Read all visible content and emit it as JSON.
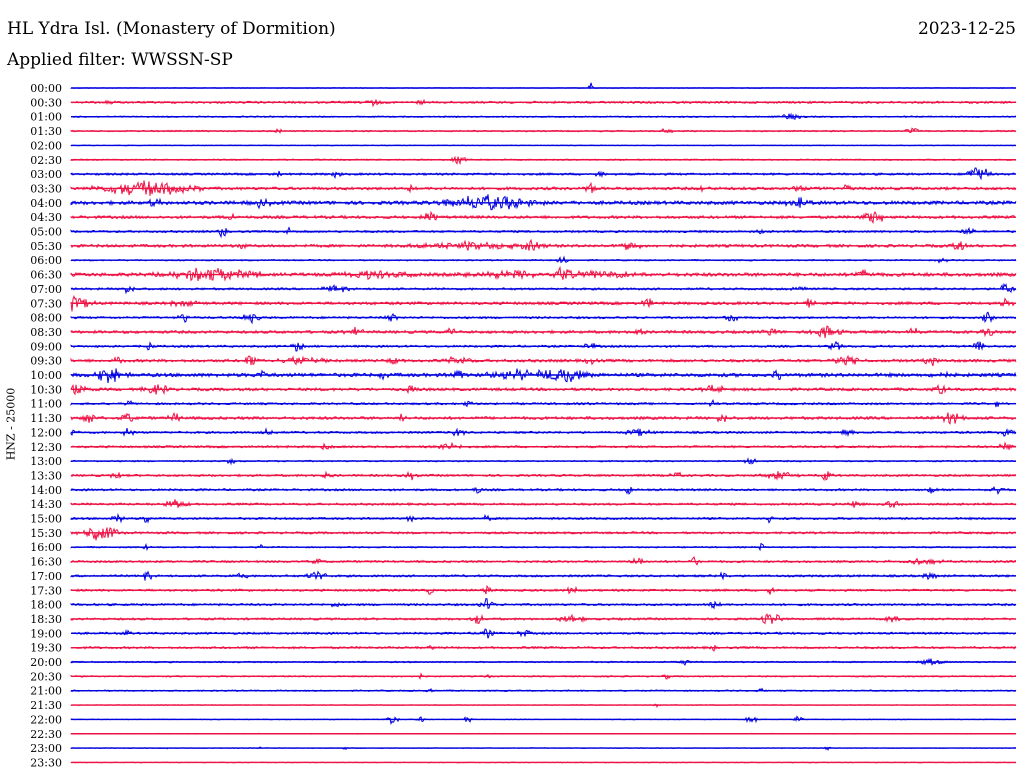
{
  "header": {
    "station_title": "HL Ydra Isl. (Monastery of Dormition)",
    "date": "2023-12-25",
    "filter_label": "Applied filter: WWSSN-SP"
  },
  "chart_data": {
    "type": "line",
    "ylabel": "HNZ - 25000",
    "trace_colors": [
      "#0000e0",
      "#ee1144"
    ],
    "rows": [
      "00:00",
      "00:30",
      "01:00",
      "01:30",
      "02:00",
      "02:30",
      "03:00",
      "03:30",
      "04:00",
      "04:30",
      "05:00",
      "05:30",
      "06:00",
      "06:30",
      "07:00",
      "07:30",
      "08:00",
      "08:30",
      "09:00",
      "09:30",
      "10:00",
      "10:30",
      "11:00",
      "11:30",
      "12:00",
      "12:30",
      "13:00",
      "13:30",
      "14:00",
      "14:30",
      "15:00",
      "15:30",
      "16:00",
      "16:30",
      "17:00",
      "17:30",
      "18:00",
      "18:30",
      "19:00",
      "19:30",
      "20:00",
      "20:30",
      "21:00",
      "21:30",
      "22:00",
      "22:30",
      "23:00",
      "23:30"
    ],
    "noise_level": [
      1,
      3,
      2,
      2,
      1,
      2,
      3,
      4,
      5,
      4,
      3,
      4,
      2,
      5,
      3,
      4,
      3,
      4,
      3,
      4,
      5,
      4,
      3,
      4,
      3,
      3,
      2,
      3,
      3,
      3,
      3,
      3,
      2,
      3,
      3,
      3,
      3,
      3,
      3,
      3,
      2,
      2,
      2,
      1,
      1,
      1,
      1,
      1
    ],
    "events": [
      {
        "row": "00:00",
        "x": 0.55,
        "w": 0.004,
        "amp": 6
      },
      {
        "row": "00:30",
        "x": 0.04,
        "w": 0.01,
        "amp": 3
      },
      {
        "row": "00:30",
        "x": 0.32,
        "w": 0.01,
        "amp": 3
      },
      {
        "row": "00:30",
        "x": 0.37,
        "w": 0.008,
        "amp": 3
      },
      {
        "row": "01:00",
        "x": 0.76,
        "w": 0.02,
        "amp": 3
      },
      {
        "row": "01:30",
        "x": 0.22,
        "w": 0.008,
        "amp": 3
      },
      {
        "row": "01:30",
        "x": 0.63,
        "w": 0.008,
        "amp": 3
      },
      {
        "row": "01:30",
        "x": 0.89,
        "w": 0.01,
        "amp": 4
      },
      {
        "row": "02:30",
        "x": 0.41,
        "w": 0.012,
        "amp": 4
      },
      {
        "row": "03:00",
        "x": 0.22,
        "w": 0.008,
        "amp": 4
      },
      {
        "row": "03:00",
        "x": 0.28,
        "w": 0.008,
        "amp": 4
      },
      {
        "row": "03:00",
        "x": 0.56,
        "w": 0.008,
        "amp": 3
      },
      {
        "row": "03:00",
        "x": 0.96,
        "w": 0.015,
        "amp": 10
      },
      {
        "row": "03:30",
        "x": 0.08,
        "w": 0.07,
        "amp": 8
      },
      {
        "row": "03:30",
        "x": 0.36,
        "w": 0.006,
        "amp": 4
      },
      {
        "row": "03:30",
        "x": 0.55,
        "w": 0.01,
        "amp": 6
      },
      {
        "row": "03:30",
        "x": 0.67,
        "w": 0.008,
        "amp": 4
      },
      {
        "row": "03:30",
        "x": 0.77,
        "w": 0.008,
        "amp": 4
      },
      {
        "row": "03:30",
        "x": 0.82,
        "w": 0.008,
        "amp": 4
      },
      {
        "row": "04:00",
        "x": 0.09,
        "w": 0.01,
        "amp": 5
      },
      {
        "row": "04:00",
        "x": 0.2,
        "w": 0.015,
        "amp": 4
      },
      {
        "row": "04:00",
        "x": 0.44,
        "w": 0.07,
        "amp": 8
      },
      {
        "row": "04:00",
        "x": 0.77,
        "w": 0.02,
        "amp": 8
      },
      {
        "row": "04:30",
        "x": 0.17,
        "w": 0.008,
        "amp": 4
      },
      {
        "row": "04:30",
        "x": 0.38,
        "w": 0.012,
        "amp": 6
      },
      {
        "row": "04:30",
        "x": 0.85,
        "w": 0.02,
        "amp": 7
      },
      {
        "row": "05:00",
        "x": 0.16,
        "w": 0.008,
        "amp": 6
      },
      {
        "row": "05:00",
        "x": 0.23,
        "w": 0.006,
        "amp": 4
      },
      {
        "row": "05:00",
        "x": 0.73,
        "w": 0.006,
        "amp": 3
      },
      {
        "row": "05:00",
        "x": 0.95,
        "w": 0.01,
        "amp": 5
      },
      {
        "row": "05:30",
        "x": 0.18,
        "w": 0.006,
        "amp": 4
      },
      {
        "row": "05:30",
        "x": 0.42,
        "w": 0.08,
        "amp": 4
      },
      {
        "row": "05:30",
        "x": 0.49,
        "w": 0.02,
        "amp": 6
      },
      {
        "row": "05:30",
        "x": 0.59,
        "w": 0.015,
        "amp": 6
      },
      {
        "row": "05:30",
        "x": 0.94,
        "w": 0.01,
        "amp": 6
      },
      {
        "row": "06:00",
        "x": 0.52,
        "w": 0.01,
        "amp": 4
      },
      {
        "row": "06:00",
        "x": 0.92,
        "w": 0.01,
        "amp": 3
      },
      {
        "row": "06:30",
        "x": 0.15,
        "w": 0.07,
        "amp": 7
      },
      {
        "row": "06:30",
        "x": 0.32,
        "w": 0.05,
        "amp": 4
      },
      {
        "row": "06:30",
        "x": 0.46,
        "w": 0.06,
        "amp": 4
      },
      {
        "row": "06:30",
        "x": 0.52,
        "w": 0.02,
        "amp": 7
      },
      {
        "row": "06:30",
        "x": 0.56,
        "w": 0.05,
        "amp": 4
      },
      {
        "row": "06:30",
        "x": 0.84,
        "w": 0.02,
        "amp": 4
      },
      {
        "row": "07:00",
        "x": 0.06,
        "w": 0.01,
        "amp": 4
      },
      {
        "row": "07:00",
        "x": 0.28,
        "w": 0.02,
        "amp": 4
      },
      {
        "row": "07:00",
        "x": 0.77,
        "w": 0.01,
        "amp": 5
      },
      {
        "row": "07:00",
        "x": 0.99,
        "w": 0.01,
        "amp": 7
      },
      {
        "row": "07:30",
        "x": 0.0,
        "w": 0.03,
        "amp": 8
      },
      {
        "row": "07:30",
        "x": 0.12,
        "w": 0.02,
        "amp": 4
      },
      {
        "row": "07:30",
        "x": 0.61,
        "w": 0.01,
        "amp": 5
      },
      {
        "row": "07:30",
        "x": 0.78,
        "w": 0.01,
        "amp": 5
      },
      {
        "row": "07:30",
        "x": 0.99,
        "w": 0.01,
        "amp": 5
      },
      {
        "row": "08:00",
        "x": 0.12,
        "w": 0.01,
        "amp": 5
      },
      {
        "row": "08:00",
        "x": 0.19,
        "w": 0.015,
        "amp": 5
      },
      {
        "row": "08:00",
        "x": 0.34,
        "w": 0.01,
        "amp": 4
      },
      {
        "row": "08:00",
        "x": 0.7,
        "w": 0.01,
        "amp": 5
      },
      {
        "row": "08:00",
        "x": 0.97,
        "w": 0.01,
        "amp": 5
      },
      {
        "row": "08:30",
        "x": 0.3,
        "w": 0.015,
        "amp": 4
      },
      {
        "row": "08:30",
        "x": 0.4,
        "w": 0.01,
        "amp": 4
      },
      {
        "row": "08:30",
        "x": 0.6,
        "w": 0.01,
        "amp": 4
      },
      {
        "row": "08:30",
        "x": 0.74,
        "w": 0.01,
        "amp": 5
      },
      {
        "row": "08:30",
        "x": 0.8,
        "w": 0.02,
        "amp": 6
      },
      {
        "row": "08:30",
        "x": 0.89,
        "w": 0.01,
        "amp": 5
      },
      {
        "row": "08:30",
        "x": 0.97,
        "w": 0.01,
        "amp": 5
      },
      {
        "row": "09:00",
        "x": 0.08,
        "w": 0.01,
        "amp": 5
      },
      {
        "row": "09:00",
        "x": 0.24,
        "w": 0.01,
        "amp": 5
      },
      {
        "row": "09:00",
        "x": 0.55,
        "w": 0.01,
        "amp": 4
      },
      {
        "row": "09:00",
        "x": 0.81,
        "w": 0.01,
        "amp": 5
      },
      {
        "row": "09:00",
        "x": 0.96,
        "w": 0.01,
        "amp": 5
      },
      {
        "row": "09:30",
        "x": 0.05,
        "w": 0.01,
        "amp": 4
      },
      {
        "row": "09:30",
        "x": 0.19,
        "w": 0.01,
        "amp": 7
      },
      {
        "row": "09:30",
        "x": 0.24,
        "w": 0.04,
        "amp": 4
      },
      {
        "row": "09:30",
        "x": 0.34,
        "w": 0.01,
        "amp": 5
      },
      {
        "row": "09:30",
        "x": 0.41,
        "w": 0.02,
        "amp": 4
      },
      {
        "row": "09:30",
        "x": 0.55,
        "w": 0.01,
        "amp": 4
      },
      {
        "row": "09:30",
        "x": 0.82,
        "w": 0.02,
        "amp": 5
      },
      {
        "row": "09:30",
        "x": 0.91,
        "w": 0.01,
        "amp": 5
      },
      {
        "row": "10:00",
        "x": 0.04,
        "w": 0.025,
        "amp": 8
      },
      {
        "row": "10:00",
        "x": 0.2,
        "w": 0.01,
        "amp": 5
      },
      {
        "row": "10:00",
        "x": 0.33,
        "w": 0.01,
        "amp": 4
      },
      {
        "row": "10:00",
        "x": 0.41,
        "w": 0.01,
        "amp": 6
      },
      {
        "row": "10:00",
        "x": 0.47,
        "w": 0.04,
        "amp": 6
      },
      {
        "row": "10:00",
        "x": 0.52,
        "w": 0.04,
        "amp": 8
      },
      {
        "row": "10:00",
        "x": 0.75,
        "w": 0.01,
        "amp": 6
      },
      {
        "row": "10:00",
        "x": 0.92,
        "w": 0.01,
        "amp": 6
      },
      {
        "row": "10:30",
        "x": 0.0,
        "w": 0.025,
        "amp": 6
      },
      {
        "row": "10:30",
        "x": 0.09,
        "w": 0.02,
        "amp": 5
      },
      {
        "row": "10:30",
        "x": 0.36,
        "w": 0.01,
        "amp": 5
      },
      {
        "row": "10:30",
        "x": 0.68,
        "w": 0.015,
        "amp": 5
      },
      {
        "row": "10:30",
        "x": 0.92,
        "w": 0.01,
        "amp": 5
      },
      {
        "row": "11:00",
        "x": 0.06,
        "w": 0.006,
        "amp": 4
      },
      {
        "row": "11:00",
        "x": 0.42,
        "w": 0.006,
        "amp": 4
      },
      {
        "row": "11:00",
        "x": 0.55,
        "w": 0.006,
        "amp": 4
      },
      {
        "row": "11:00",
        "x": 0.68,
        "w": 0.006,
        "amp": 4
      },
      {
        "row": "11:00",
        "x": 0.98,
        "w": 0.006,
        "amp": 4
      },
      {
        "row": "11:30",
        "x": 0.02,
        "w": 0.01,
        "amp": 6
      },
      {
        "row": "11:30",
        "x": 0.06,
        "w": 0.01,
        "amp": 5
      },
      {
        "row": "11:30",
        "x": 0.11,
        "w": 0.01,
        "amp": 5
      },
      {
        "row": "11:30",
        "x": 0.35,
        "w": 0.006,
        "amp": 4
      },
      {
        "row": "11:30",
        "x": 0.69,
        "w": 0.01,
        "amp": 5
      },
      {
        "row": "11:30",
        "x": 0.93,
        "w": 0.02,
        "amp": 6
      },
      {
        "row": "12:00",
        "x": 0.0,
        "w": 0.01,
        "amp": 5
      },
      {
        "row": "12:00",
        "x": 0.06,
        "w": 0.01,
        "amp": 5
      },
      {
        "row": "12:00",
        "x": 0.21,
        "w": 0.01,
        "amp": 4
      },
      {
        "row": "12:00",
        "x": 0.41,
        "w": 0.01,
        "amp": 5
      },
      {
        "row": "12:00",
        "x": 0.6,
        "w": 0.02,
        "amp": 4
      },
      {
        "row": "12:00",
        "x": 0.82,
        "w": 0.01,
        "amp": 4
      },
      {
        "row": "12:00",
        "x": 0.99,
        "w": 0.01,
        "amp": 6
      },
      {
        "row": "12:30",
        "x": 0.27,
        "w": 0.01,
        "amp": 3
      },
      {
        "row": "12:30",
        "x": 0.4,
        "w": 0.02,
        "amp": 3
      },
      {
        "row": "12:30",
        "x": 0.99,
        "w": 0.01,
        "amp": 5
      },
      {
        "row": "13:00",
        "x": 0.17,
        "w": 0.006,
        "amp": 4
      },
      {
        "row": "13:00",
        "x": 0.72,
        "w": 0.01,
        "amp": 5
      },
      {
        "row": "13:30",
        "x": 0.05,
        "w": 0.01,
        "amp": 5
      },
      {
        "row": "13:30",
        "x": 0.27,
        "w": 0.01,
        "amp": 3
      },
      {
        "row": "13:30",
        "x": 0.36,
        "w": 0.01,
        "amp": 4
      },
      {
        "row": "13:30",
        "x": 0.64,
        "w": 0.01,
        "amp": 4
      },
      {
        "row": "13:30",
        "x": 0.75,
        "w": 0.03,
        "amp": 4
      },
      {
        "row": "13:30",
        "x": 0.8,
        "w": 0.01,
        "amp": 6
      },
      {
        "row": "14:00",
        "x": 0.43,
        "w": 0.006,
        "amp": 5
      },
      {
        "row": "14:00",
        "x": 0.59,
        "w": 0.006,
        "amp": 5
      },
      {
        "row": "14:00",
        "x": 0.91,
        "w": 0.01,
        "amp": 4
      },
      {
        "row": "14:00",
        "x": 0.98,
        "w": 0.01,
        "amp": 4
      },
      {
        "row": "14:30",
        "x": 0.11,
        "w": 0.02,
        "amp": 5
      },
      {
        "row": "14:30",
        "x": 0.83,
        "w": 0.01,
        "amp": 5
      },
      {
        "row": "14:30",
        "x": 0.87,
        "w": 0.01,
        "amp": 5
      },
      {
        "row": "15:00",
        "x": 0.05,
        "w": 0.01,
        "amp": 5
      },
      {
        "row": "15:00",
        "x": 0.08,
        "w": 0.006,
        "amp": 6
      },
      {
        "row": "15:00",
        "x": 0.36,
        "w": 0.006,
        "amp": 4
      },
      {
        "row": "15:00",
        "x": 0.44,
        "w": 0.006,
        "amp": 4
      },
      {
        "row": "15:00",
        "x": 0.74,
        "w": 0.006,
        "amp": 5
      },
      {
        "row": "15:30",
        "x": 0.03,
        "w": 0.03,
        "amp": 8
      },
      {
        "row": "15:30",
        "x": 0.32,
        "w": 0.006,
        "amp": 3
      },
      {
        "row": "16:00",
        "x": 0.08,
        "w": 0.005,
        "amp": 3
      },
      {
        "row": "16:00",
        "x": 0.2,
        "w": 0.005,
        "amp": 3
      },
      {
        "row": "16:00",
        "x": 0.73,
        "w": 0.005,
        "amp": 6
      },
      {
        "row": "16:30",
        "x": 0.26,
        "w": 0.01,
        "amp": 3
      },
      {
        "row": "16:30",
        "x": 0.6,
        "w": 0.01,
        "amp": 5
      },
      {
        "row": "16:30",
        "x": 0.66,
        "w": 0.01,
        "amp": 5
      },
      {
        "row": "16:30",
        "x": 0.9,
        "w": 0.04,
        "amp": 3
      },
      {
        "row": "17:00",
        "x": 0.08,
        "w": 0.01,
        "amp": 5
      },
      {
        "row": "17:00",
        "x": 0.18,
        "w": 0.01,
        "amp": 4
      },
      {
        "row": "17:00",
        "x": 0.26,
        "w": 0.015,
        "amp": 5
      },
      {
        "row": "17:00",
        "x": 0.69,
        "w": 0.01,
        "amp": 4
      },
      {
        "row": "17:00",
        "x": 0.91,
        "w": 0.01,
        "amp": 5
      },
      {
        "row": "17:30",
        "x": 0.38,
        "w": 0.006,
        "amp": 4
      },
      {
        "row": "17:30",
        "x": 0.44,
        "w": 0.006,
        "amp": 6
      },
      {
        "row": "17:30",
        "x": 0.53,
        "w": 0.01,
        "amp": 4
      },
      {
        "row": "17:30",
        "x": 0.74,
        "w": 0.006,
        "amp": 5
      },
      {
        "row": "18:00",
        "x": 0.28,
        "w": 0.006,
        "amp": 4
      },
      {
        "row": "18:00",
        "x": 0.44,
        "w": 0.01,
        "amp": 7
      },
      {
        "row": "18:00",
        "x": 0.68,
        "w": 0.01,
        "amp": 4
      },
      {
        "row": "18:30",
        "x": 0.43,
        "w": 0.01,
        "amp": 6
      },
      {
        "row": "18:30",
        "x": 0.53,
        "w": 0.02,
        "amp": 4
      },
      {
        "row": "18:30",
        "x": 0.74,
        "w": 0.02,
        "amp": 6
      },
      {
        "row": "18:30",
        "x": 0.87,
        "w": 0.01,
        "amp": 4
      },
      {
        "row": "19:00",
        "x": 0.06,
        "w": 0.006,
        "amp": 5
      },
      {
        "row": "19:00",
        "x": 0.44,
        "w": 0.01,
        "amp": 5
      },
      {
        "row": "19:00",
        "x": 0.48,
        "w": 0.01,
        "amp": 4
      },
      {
        "row": "19:30",
        "x": 0.38,
        "w": 0.006,
        "amp": 3
      },
      {
        "row": "19:30",
        "x": 0.68,
        "w": 0.006,
        "amp": 3
      },
      {
        "row": "20:00",
        "x": 0.65,
        "w": 0.01,
        "amp": 3
      },
      {
        "row": "20:00",
        "x": 0.91,
        "w": 0.02,
        "amp": 3
      },
      {
        "row": "20:30",
        "x": 0.37,
        "w": 0.005,
        "amp": 3
      },
      {
        "row": "20:30",
        "x": 0.44,
        "w": 0.005,
        "amp": 3
      },
      {
        "row": "20:30",
        "x": 0.63,
        "w": 0.005,
        "amp": 3
      },
      {
        "row": "21:00",
        "x": 0.38,
        "w": 0.005,
        "amp": 3
      },
      {
        "row": "21:00",
        "x": 0.73,
        "w": 0.005,
        "amp": 3
      },
      {
        "row": "21:30",
        "x": 0.62,
        "w": 0.005,
        "amp": 2
      },
      {
        "row": "22:00",
        "x": 0.34,
        "w": 0.01,
        "amp": 5
      },
      {
        "row": "22:00",
        "x": 0.37,
        "w": 0.006,
        "amp": 4
      },
      {
        "row": "22:00",
        "x": 0.42,
        "w": 0.006,
        "amp": 4
      },
      {
        "row": "22:00",
        "x": 0.72,
        "w": 0.01,
        "amp": 4
      },
      {
        "row": "22:00",
        "x": 0.77,
        "w": 0.006,
        "amp": 5
      },
      {
        "row": "23:00",
        "x": 0.1,
        "w": 0.004,
        "amp": 2
      },
      {
        "row": "23:00",
        "x": 0.2,
        "w": 0.004,
        "amp": 2
      },
      {
        "row": "23:00",
        "x": 0.29,
        "w": 0.004,
        "amp": 2
      },
      {
        "row": "23:00",
        "x": 0.8,
        "w": 0.005,
        "amp": 2
      }
    ]
  }
}
